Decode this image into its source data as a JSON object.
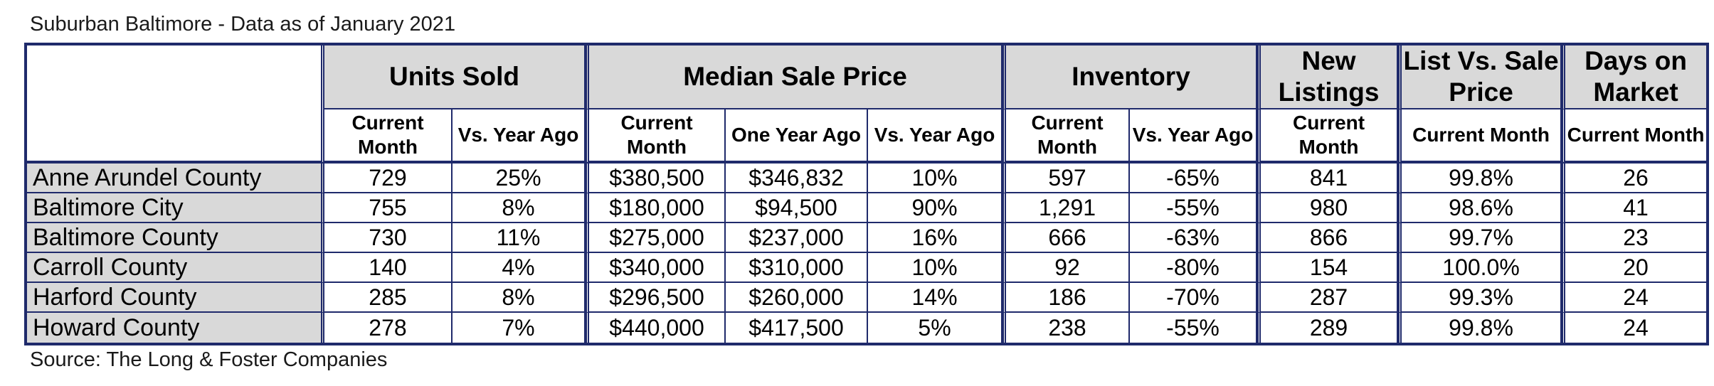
{
  "title": "Suburban Baltimore - Data as of January 2021",
  "source": "Source: The Long & Foster Companies",
  "colors": {
    "header_fill": "#d9d9d9",
    "border": "#1f2a6b"
  },
  "groups": [
    {
      "label": "Units Sold"
    },
    {
      "label": "Median Sale Price"
    },
    {
      "label": "Inventory"
    },
    {
      "label": "New Listings"
    },
    {
      "label": "List Vs. Sale Price"
    },
    {
      "label": "Days on Market"
    }
  ],
  "subheaders": [
    "Current Month",
    "Vs. Year Ago",
    "Current Month",
    "One Year Ago",
    "Vs. Year Ago",
    "Current Month",
    "Vs. Year Ago",
    "Current Month",
    "Current Month",
    "Current Month"
  ],
  "rows": [
    {
      "name": "Anne Arundel County",
      "values": [
        "729",
        "25%",
        "$380,500",
        "$346,832",
        "10%",
        "597",
        "-65%",
        "841",
        "99.8%",
        "26"
      ]
    },
    {
      "name": "Baltimore City",
      "values": [
        "755",
        "8%",
        "$180,000",
        "$94,500",
        "90%",
        "1,291",
        "-55%",
        "980",
        "98.6%",
        "41"
      ]
    },
    {
      "name": "Baltimore County",
      "values": [
        "730",
        "11%",
        "$275,000",
        "$237,000",
        "16%",
        "666",
        "-63%",
        "866",
        "99.7%",
        "23"
      ]
    },
    {
      "name": "Carroll County",
      "values": [
        "140",
        "4%",
        "$340,000",
        "$310,000",
        "10%",
        "92",
        "-80%",
        "154",
        "100.0%",
        "20"
      ]
    },
    {
      "name": "Harford County",
      "values": [
        "285",
        "8%",
        "$296,500",
        "$260,000",
        "14%",
        "186",
        "-70%",
        "287",
        "99.3%",
        "24"
      ]
    },
    {
      "name": "Howard County",
      "values": [
        "278",
        "7%",
        "$440,000",
        "$417,500",
        "5%",
        "238",
        "-55%",
        "289",
        "99.8%",
        "24"
      ]
    }
  ]
}
